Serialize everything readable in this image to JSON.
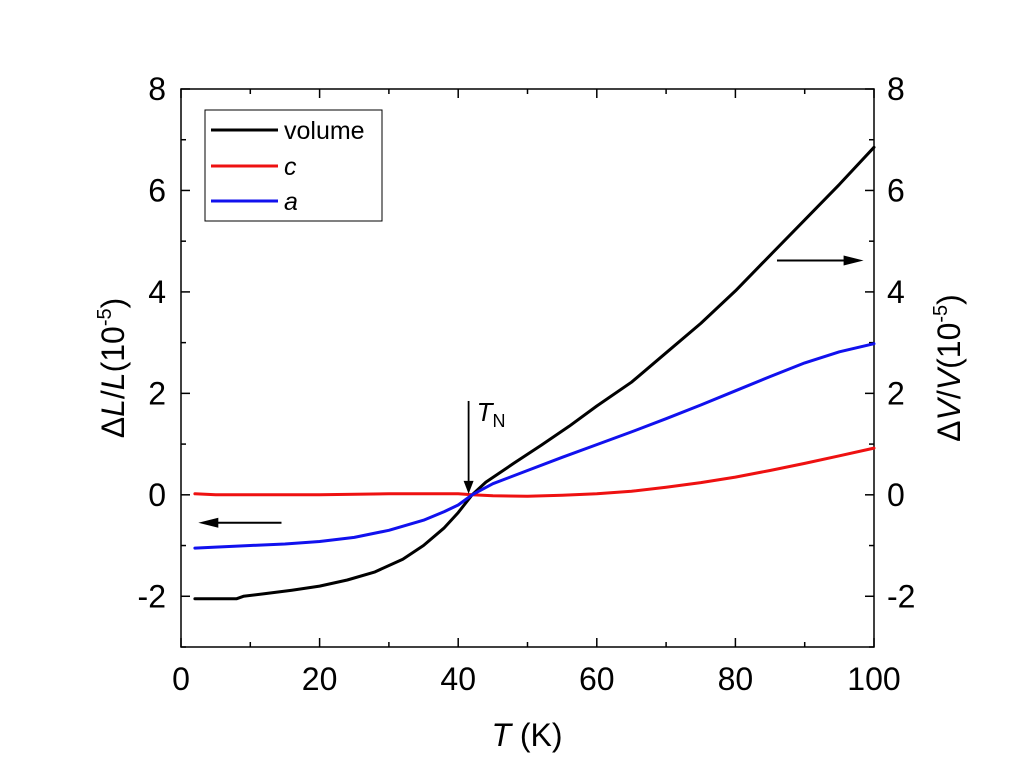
{
  "chart_data": {
    "type": "line",
    "title": "",
    "xlabel": {
      "italic": "T",
      "rest": " (K)"
    },
    "ylabel_left": {
      "delta": "Δ",
      "italic1": "L",
      "slash": "/",
      "italic2": "L",
      "unit": "(10",
      "exp": "-5",
      "close": ")"
    },
    "ylabel_right": {
      "delta": "Δ",
      "italic1": "V",
      "slash": "/",
      "italic2": "V",
      "unit": "(10",
      "exp": "-5",
      "close": ")"
    },
    "xlim": [
      0,
      100
    ],
    "ylim": [
      -3,
      8
    ],
    "x_ticks": [
      "0",
      "20",
      "40",
      "60",
      "80",
      "100"
    ],
    "x_tick_values": [
      0,
      20,
      40,
      60,
      80,
      100
    ],
    "y_ticks": [
      "-2",
      "0",
      "2",
      "4",
      "6",
      "8"
    ],
    "y_tick_values": [
      -2,
      0,
      2,
      4,
      6,
      8
    ],
    "grid": false,
    "legend_position": "top-left",
    "series": [
      {
        "name": "volume",
        "italic": false,
        "color": "#000000",
        "points": [
          [
            2,
            -2.05
          ],
          [
            5,
            -2.05
          ],
          [
            8,
            -2.05
          ],
          [
            9,
            -2.0
          ],
          [
            12,
            -1.95
          ],
          [
            16,
            -1.88
          ],
          [
            20,
            -1.8
          ],
          [
            24,
            -1.68
          ],
          [
            28,
            -1.52
          ],
          [
            32,
            -1.27
          ],
          [
            35,
            -1.0
          ],
          [
            38,
            -0.65
          ],
          [
            40,
            -0.35
          ],
          [
            42,
            0.0
          ],
          [
            44,
            0.25
          ],
          [
            48,
            0.62
          ],
          [
            52,
            0.98
          ],
          [
            56,
            1.35
          ],
          [
            60,
            1.75
          ],
          [
            65,
            2.22
          ],
          [
            70,
            2.8
          ],
          [
            75,
            3.38
          ],
          [
            80,
            4.02
          ],
          [
            85,
            4.72
          ],
          [
            90,
            5.42
          ],
          [
            95,
            6.12
          ],
          [
            100,
            6.85
          ]
        ]
      },
      {
        "name": "c",
        "italic": true,
        "color": "#ee1111",
        "points": [
          [
            2,
            0.02
          ],
          [
            5,
            0.0
          ],
          [
            10,
            0.0
          ],
          [
            20,
            0.0
          ],
          [
            30,
            0.02
          ],
          [
            40,
            0.02
          ],
          [
            42,
            0.0
          ],
          [
            45,
            -0.02
          ],
          [
            50,
            -0.03
          ],
          [
            55,
            -0.01
          ],
          [
            60,
            0.02
          ],
          [
            65,
            0.07
          ],
          [
            70,
            0.15
          ],
          [
            75,
            0.24
          ],
          [
            80,
            0.35
          ],
          [
            85,
            0.48
          ],
          [
            90,
            0.62
          ],
          [
            95,
            0.77
          ],
          [
            100,
            0.92
          ]
        ]
      },
      {
        "name": "a",
        "italic": true,
        "color": "#1111ee",
        "points": [
          [
            2,
            -1.05
          ],
          [
            5,
            -1.03
          ],
          [
            10,
            -1.0
          ],
          [
            15,
            -0.97
          ],
          [
            20,
            -0.92
          ],
          [
            25,
            -0.84
          ],
          [
            30,
            -0.7
          ],
          [
            35,
            -0.5
          ],
          [
            38,
            -0.33
          ],
          [
            40,
            -0.2
          ],
          [
            42,
            0.0
          ],
          [
            45,
            0.22
          ],
          [
            50,
            0.48
          ],
          [
            55,
            0.74
          ],
          [
            60,
            0.99
          ],
          [
            65,
            1.24
          ],
          [
            70,
            1.5
          ],
          [
            75,
            1.77
          ],
          [
            80,
            2.05
          ],
          [
            85,
            2.33
          ],
          [
            90,
            2.6
          ],
          [
            95,
            2.82
          ],
          [
            100,
            2.98
          ]
        ]
      }
    ],
    "annotations": {
      "tn_label_main": "T",
      "tn_label_sub": "N",
      "tn_x": 41.5,
      "tn_arrow_top": 1.85,
      "tn_arrow_bottom": 0.0,
      "left_arrow": {
        "x_from": 14.5,
        "x_to": 2.5,
        "y": -0.55
      },
      "right_arrow": {
        "x_from": 86,
        "x_to": 98.5,
        "y": 4.62
      }
    }
  }
}
